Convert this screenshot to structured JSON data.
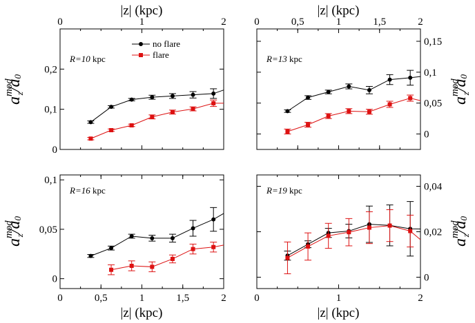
{
  "colors": {
    "series_no_flare": "#000000",
    "series_flare": "#dd1111",
    "axis": "#000000",
    "background": "#ffffff"
  },
  "x_axis_title": "|z| (kpc)",
  "y_axis_title": {
    "base": "a",
    "sup": "mod",
    "sub": "z",
    "denominator": "/a",
    "denominator_sub": "0"
  },
  "legend": {
    "no_flare": "no flare",
    "flare": "flare",
    "placement": "top-center of first panel"
  },
  "chart_data": [
    {
      "type": "line",
      "panel_label": {
        "prefix": "R=",
        "value": "10",
        "unit": " kpc"
      },
      "xlim": [
        0,
        2
      ],
      "ylim": [
        0,
        0.3
      ],
      "xticks": [
        0,
        1,
        2
      ],
      "xtick_labels": [
        "0",
        "1",
        "2"
      ],
      "yticks": [
        0,
        0.1,
        0.2
      ],
      "ytick_labels": [
        "0",
        "0,1",
        "0,2"
      ],
      "x_axis_position": "top",
      "y_axis_position": "left",
      "series": [
        {
          "name": "no flare",
          "x": [
            0.375,
            0.625,
            0.875,
            1.125,
            1.375,
            1.625,
            1.875
          ],
          "y": [
            0.068,
            0.106,
            0.124,
            0.13,
            0.133,
            0.136,
            0.139
          ],
          "err": [
            0.003,
            0.003,
            0.003,
            0.005,
            0.006,
            0.008,
            0.012
          ]
        },
        {
          "name": "flare",
          "x": [
            0.375,
            0.625,
            0.875,
            1.125,
            1.375,
            1.625,
            1.875
          ],
          "y": [
            0.027,
            0.048,
            0.06,
            0.081,
            0.093,
            0.101,
            0.115
          ],
          "err": [
            0.003,
            0.003,
            0.003,
            0.005,
            0.005,
            0.005,
            0.008
          ]
        }
      ],
      "line_end": {
        "x": 2.0,
        "no_flare": 0.148,
        "flare": 0.115
      }
    },
    {
      "type": "line",
      "panel_label": {
        "prefix": "R=",
        "value": "13",
        "unit": " kpc"
      },
      "xlim": [
        0,
        2
      ],
      "ylim": [
        -0.025,
        0.17
      ],
      "xticks": [
        0,
        0.5,
        1,
        1.5,
        2
      ],
      "xtick_labels": [
        "0",
        "0,5",
        "1",
        "1,5",
        "2"
      ],
      "yticks": [
        0,
        0.05,
        0.1,
        0.15
      ],
      "ytick_labels": [
        "0",
        "0,05",
        "0,1",
        "0,15"
      ],
      "x_axis_position": "top",
      "y_axis_position": "right",
      "series": [
        {
          "name": "no flare",
          "x": [
            0.375,
            0.625,
            0.875,
            1.125,
            1.375,
            1.625,
            1.875
          ],
          "y": [
            0.037,
            0.059,
            0.068,
            0.077,
            0.071,
            0.088,
            0.091
          ],
          "err": [
            0.002,
            0.003,
            0.003,
            0.004,
            0.006,
            0.008,
            0.012
          ]
        },
        {
          "name": "flare",
          "x": [
            0.375,
            0.625,
            0.875,
            1.125,
            1.375,
            1.625,
            1.875
          ],
          "y": [
            0.004,
            0.015,
            0.029,
            0.037,
            0.036,
            0.048,
            0.058
          ],
          "err": [
            0.004,
            0.004,
            0.004,
            0.004,
            0.004,
            0.005,
            0.005
          ]
        }
      ],
      "line_end": {
        "x": 2.0,
        "no_flare": 0.093,
        "flare": 0.054
      }
    },
    {
      "type": "line",
      "panel_label": {
        "prefix": "R=",
        "value": "16",
        "unit": " kpc"
      },
      "xlim": [
        0,
        2
      ],
      "ylim": [
        -0.01,
        0.105
      ],
      "xticks": [
        0,
        0.5,
        1,
        1.5,
        2
      ],
      "xtick_labels": [
        "0",
        "0,5",
        "1",
        "1,5",
        "2"
      ],
      "yticks": [
        0,
        0.05,
        0.1
      ],
      "ytick_labels": [
        "0",
        "0,05",
        "0,1"
      ],
      "x_axis_position": "bottom",
      "y_axis_position": "left",
      "series": [
        {
          "name": "no flare",
          "x": [
            0.375,
            0.625,
            0.875,
            1.125,
            1.375,
            1.625,
            1.875
          ],
          "y": [
            0.023,
            0.031,
            0.043,
            0.041,
            0.041,
            0.051,
            0.06
          ],
          "err": [
            0.0015,
            0.002,
            0.002,
            0.003,
            0.004,
            0.008,
            0.012
          ]
        },
        {
          "name": "flare",
          "x": [
            0.625,
            0.875,
            1.125,
            1.375,
            1.625,
            1.875
          ],
          "y": [
            0.009,
            0.013,
            0.012,
            0.02,
            0.03,
            0.032
          ],
          "err": [
            0.005,
            0.005,
            0.005,
            0.004,
            0.005,
            0.005
          ]
        }
      ],
      "line_end": {
        "x": 2.0,
        "no_flare": 0.066,
        "flare": 0.034
      }
    },
    {
      "type": "line",
      "panel_label": {
        "prefix": "R=",
        "value": "19",
        "unit": " kpc"
      },
      "xlim": [
        0,
        2
      ],
      "ylim": [
        -0.005,
        0.045
      ],
      "xticks": [
        0,
        1,
        2
      ],
      "xtick_labels": [
        "0",
        "1",
        "2"
      ],
      "yticks": [
        0,
        0.02,
        0.04
      ],
      "ytick_labels": [
        "0",
        "0,02",
        "0,04"
      ],
      "x_axis_position": "bottom",
      "y_axis_position": "right",
      "series": [
        {
          "name": "no flare",
          "x": [
            0.375,
            0.625,
            0.875,
            1.125,
            1.375,
            1.625,
            1.875
          ],
          "y": [
            0.0095,
            0.0145,
            0.0195,
            0.0203,
            0.0233,
            0.0228,
            0.0213
          ],
          "err": [
            0.002,
            0.0015,
            0.002,
            0.003,
            0.008,
            0.009,
            0.012
          ]
        },
        {
          "name": "flare",
          "x": [
            0.375,
            0.625,
            0.875,
            1.125,
            1.375,
            1.625,
            1.875
          ],
          "y": [
            0.0085,
            0.0135,
            0.0182,
            0.0198,
            0.0218,
            0.0227,
            0.0203
          ],
          "err": [
            0.007,
            0.006,
            0.0055,
            0.006,
            0.007,
            0.007,
            0.007
          ]
        }
      ],
      "line_end": {
        "x": 2.0,
        "no_flare": 0.0212,
        "flare": 0.0165
      }
    }
  ]
}
